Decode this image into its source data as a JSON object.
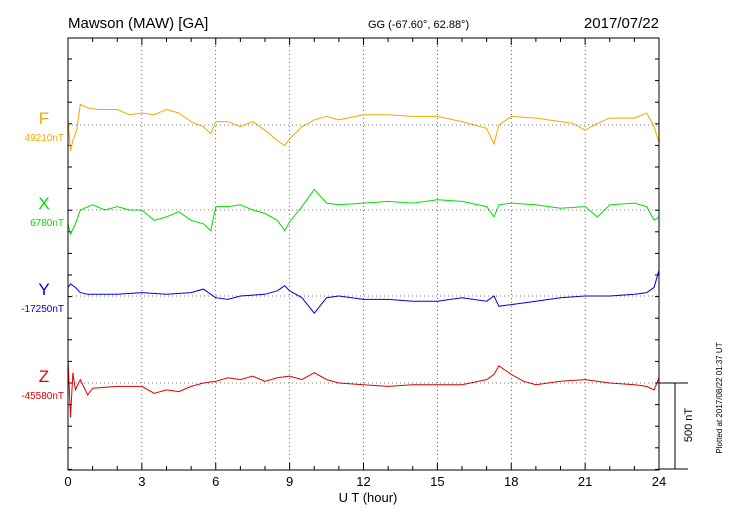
{
  "header": {
    "station": "Mawson (MAW)  [GA]",
    "coords": "GG (-67.60°,  62.88°)",
    "date": "2017/07/22"
  },
  "footer": {
    "plotted_at": "Plotted at 2017/08/22 01:37  UT",
    "scale_label": "500 nT"
  },
  "colors": {
    "F": "#f5a800",
    "X": "#00e000",
    "Y": "#0000e0",
    "Z": "#e00000",
    "axis": "#000000"
  },
  "chart_data": {
    "type": "line",
    "xlabel": "U T (hour)",
    "xlim": [
      0,
      24
    ],
    "xticks": [
      "0",
      "3",
      "6",
      "9",
      "12",
      "15",
      "18",
      "21",
      "24"
    ],
    "grid": true,
    "scale_bar_nT": 500,
    "series": [
      {
        "name": "F",
        "baseline_label": "49210nT",
        "baseline": 49210,
        "x": [
          0,
          0.1,
          0.2,
          0.35,
          0.5,
          0.8,
          1.2,
          2,
          2.5,
          3,
          3.5,
          4,
          4.5,
          5,
          5.5,
          5.8,
          6,
          6.5,
          7,
          7.5,
          8,
          8.5,
          8.8,
          9,
          9.5,
          10,
          10.5,
          11,
          12,
          13,
          14,
          15,
          16,
          17,
          17.3,
          17.5,
          18,
          19,
          20,
          20.5,
          21,
          21.5,
          22,
          23,
          23.5,
          23.8,
          24
        ],
        "values": [
          49240,
          49060,
          49120,
          49180,
          49330,
          49310,
          49300,
          49300,
          49270,
          49280,
          49270,
          49300,
          49280,
          49230,
          49200,
          49160,
          49230,
          49230,
          49200,
          49230,
          49180,
          49120,
          49090,
          49130,
          49200,
          49240,
          49260,
          49240,
          49270,
          49270,
          49260,
          49260,
          49230,
          49190,
          49100,
          49210,
          49260,
          49250,
          49230,
          49220,
          49180,
          49220,
          49250,
          49250,
          49280,
          49200,
          49110
        ]
      },
      {
        "name": "X",
        "baseline_label": "6780nT",
        "baseline": 6780,
        "x": [
          0,
          0.1,
          0.3,
          0.5,
          1,
          1.5,
          2,
          2.5,
          3,
          3.5,
          4,
          4.5,
          5,
          5.5,
          5.8,
          6,
          6.5,
          7,
          7.5,
          8,
          8.5,
          8.8,
          9,
          9.5,
          10,
          10.5,
          11,
          12,
          13,
          14,
          15,
          16,
          17,
          17.3,
          17.5,
          18,
          19,
          20,
          21,
          21.5,
          22,
          23,
          23.5,
          23.8,
          24
        ],
        "values": [
          6700,
          6640,
          6700,
          6780,
          6810,
          6780,
          6800,
          6780,
          6780,
          6720,
          6740,
          6770,
          6720,
          6700,
          6660,
          6800,
          6800,
          6810,
          6780,
          6760,
          6720,
          6660,
          6710,
          6800,
          6900,
          6820,
          6810,
          6820,
          6830,
          6820,
          6840,
          6830,
          6800,
          6740,
          6810,
          6820,
          6810,
          6790,
          6800,
          6740,
          6810,
          6820,
          6800,
          6720,
          6740
        ]
      },
      {
        "name": "Y",
        "baseline_label": "-17250nT",
        "baseline": -17250,
        "x": [
          0,
          0.1,
          0.3,
          0.5,
          0.8,
          1,
          2,
          3,
          4,
          5,
          5.5,
          5.8,
          6,
          6.5,
          7,
          8,
          8.5,
          8.8,
          9,
          9.5,
          10,
          10.5,
          11,
          12,
          13,
          14,
          15,
          16,
          17,
          17.3,
          17.5,
          18,
          19,
          20,
          21,
          22,
          23,
          23.5,
          23.8,
          24
        ],
        "values": [
          -17200,
          -17180,
          -17200,
          -17230,
          -17240,
          -17240,
          -17240,
          -17230,
          -17240,
          -17230,
          -17210,
          -17240,
          -17260,
          -17270,
          -17250,
          -17240,
          -17220,
          -17190,
          -17220,
          -17260,
          -17350,
          -17260,
          -17250,
          -17270,
          -17270,
          -17280,
          -17280,
          -17260,
          -17280,
          -17250,
          -17310,
          -17300,
          -17280,
          -17260,
          -17250,
          -17250,
          -17240,
          -17230,
          -17200,
          -17100
        ]
      },
      {
        "name": "Z",
        "baseline_label": "-45580nT",
        "baseline": -45580,
        "x": [
          0,
          0.1,
          0.2,
          0.3,
          0.5,
          0.8,
          1,
          2,
          3,
          3.5,
          4,
          4.5,
          5,
          5.5,
          6,
          6.5,
          7,
          7.5,
          8,
          8.5,
          9,
          9.5,
          10,
          10.5,
          11,
          12,
          13,
          14,
          15,
          16,
          17,
          17.3,
          17.5,
          18,
          18.5,
          19,
          19.5,
          20,
          21,
          22,
          23,
          23.5,
          23.8,
          24
        ],
        "values": [
          -45440,
          -45780,
          -45520,
          -45620,
          -45560,
          -45650,
          -45610,
          -45600,
          -45600,
          -45640,
          -45620,
          -45630,
          -45600,
          -45580,
          -45570,
          -45550,
          -45560,
          -45540,
          -45570,
          -45550,
          -45540,
          -45560,
          -45520,
          -45560,
          -45580,
          -45590,
          -45600,
          -45590,
          -45590,
          -45590,
          -45560,
          -45530,
          -45480,
          -45530,
          -45570,
          -45590,
          -45580,
          -45570,
          -45560,
          -45580,
          -45590,
          -45600,
          -45620,
          -45550
        ]
      }
    ]
  }
}
